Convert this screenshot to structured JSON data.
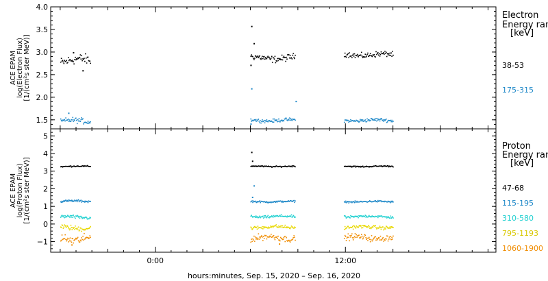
{
  "chart_data": [
    {
      "type": "scatter",
      "ylabel_lines": [
        "ACE EPAM",
        "log(Electron Flux)",
        "[1/(cm²s ster MeV)]"
      ],
      "ylim": [
        1.3,
        4.0
      ],
      "yticks": [
        1.5,
        2.0,
        2.5,
        3.0,
        3.5,
        4.0
      ],
      "ytick_labels": [
        "1.5",
        "2.0",
        "2.5",
        "3.0",
        "3.5",
        "4.0"
      ],
      "legend_title": [
        "Electron",
        "Energy range",
        "[keV]"
      ],
      "series": [
        {
          "name": "38-53",
          "color": "#000000",
          "segments": [
            {
              "start": -6.0,
              "end": -4.1,
              "level": 2.82,
              "noise": 0.09
            },
            {
              "start": 6.0,
              "end": 8.8,
              "level": 2.88,
              "noise": 0.06
            },
            {
              "start": 11.9,
              "end": 15.0,
              "level": 2.95,
              "noise": 0.05
            }
          ],
          "extra_points": [
            {
              "x": 6.05,
              "y": 3.58
            },
            {
              "x": 6.2,
              "y": 3.2
            },
            {
              "x": 6.0,
              "y": 2.72
            },
            {
              "x": -5.2,
              "y": 3.0
            },
            {
              "x": -4.6,
              "y": 2.6
            }
          ]
        },
        {
          "name": "175-315",
          "color": "#1e88c8",
          "segments": [
            {
              "start": -6.0,
              "end": -4.1,
              "level": 1.48,
              "noise": 0.05
            },
            {
              "start": 6.0,
              "end": 8.8,
              "level": 1.5,
              "noise": 0.03
            },
            {
              "start": 11.9,
              "end": 15.0,
              "level": 1.5,
              "noise": 0.03
            }
          ],
          "extra_points": [
            {
              "x": 6.05,
              "y": 2.2
            },
            {
              "x": -5.5,
              "y": 1.66
            },
            {
              "x": 8.85,
              "y": 1.92
            },
            {
              "x": 6.0,
              "y": 1.42
            }
          ]
        }
      ]
    },
    {
      "type": "scatter",
      "ylabel_lines": [
        "ACE EPAM",
        "log(Proton Flux)",
        "[1/(cm²s ster MeV)]"
      ],
      "ylim": [
        -1.6,
        5.4
      ],
      "yticks": [
        -1,
        0,
        1,
        2,
        3,
        4,
        5
      ],
      "ytick_labels": [
        "−1",
        "0",
        "1",
        "2",
        "3",
        "4",
        "5"
      ],
      "legend_title": [
        "Proton",
        "Energy range",
        "[keV]"
      ],
      "xticks": [
        0,
        12
      ],
      "xtick_labels": [
        "0:00",
        "12:00"
      ],
      "xlim": [
        -6.6,
        21.5
      ],
      "xlabel": "hours:minutes, Sep. 15, 2020 – Sep. 16, 2020",
      "series": [
        {
          "name": "47-68",
          "color": "#000000",
          "segments": [
            {
              "start": -6.0,
              "end": -4.1,
              "level": 3.3,
              "noise": 0.03
            },
            {
              "start": 6.0,
              "end": 8.8,
              "level": 3.3,
              "noise": 0.03
            },
            {
              "start": 11.9,
              "end": 15.0,
              "level": 3.3,
              "noise": 0.03
            }
          ],
          "extra_points": [
            {
              "x": 6.05,
              "y": 4.1
            },
            {
              "x": 6.1,
              "y": 3.6
            }
          ]
        },
        {
          "name": "115-195",
          "color": "#1e88c8",
          "segments": [
            {
              "start": -6.0,
              "end": -4.1,
              "level": 1.32,
              "noise": 0.05
            },
            {
              "start": 6.0,
              "end": 8.8,
              "level": 1.3,
              "noise": 0.04
            },
            {
              "start": 11.9,
              "end": 15.0,
              "level": 1.3,
              "noise": 0.04
            }
          ],
          "extra_points": [
            {
              "x": 6.2,
              "y": 2.2
            },
            {
              "x": 6.1,
              "y": 1.55
            }
          ]
        },
        {
          "name": "310-580",
          "color": "#20d0d0",
          "segments": [
            {
              "start": -6.0,
              "end": -4.1,
              "level": 0.42,
              "noise": 0.08
            },
            {
              "start": 6.0,
              "end": 8.8,
              "level": 0.45,
              "noise": 0.06
            },
            {
              "start": 11.9,
              "end": 15.0,
              "level": 0.45,
              "noise": 0.06
            }
          ],
          "extra_points": []
        },
        {
          "name": "795-1193",
          "color": "#e8d800",
          "segments": [
            {
              "start": -6.0,
              "end": -4.1,
              "level": -0.18,
              "noise": 0.12
            },
            {
              "start": 6.0,
              "end": 8.8,
              "level": -0.15,
              "noise": 0.08
            },
            {
              "start": 11.9,
              "end": 15.0,
              "level": -0.15,
              "noise": 0.08
            }
          ],
          "extra_points": []
        },
        {
          "name": "1060-1900",
          "color": "#f08c00",
          "segments": [
            {
              "start": -6.0,
              "end": -4.1,
              "level": -0.8,
              "noise": 0.2
            },
            {
              "start": 6.0,
              "end": 8.8,
              "level": -0.75,
              "noise": 0.15
            },
            {
              "start": 11.9,
              "end": 15.0,
              "level": -0.75,
              "noise": 0.14
            }
          ],
          "extra_points": [
            {
              "x": -5.3,
              "y": -1.15
            },
            {
              "x": 7.8,
              "y": -1.1
            }
          ]
        }
      ]
    }
  ]
}
